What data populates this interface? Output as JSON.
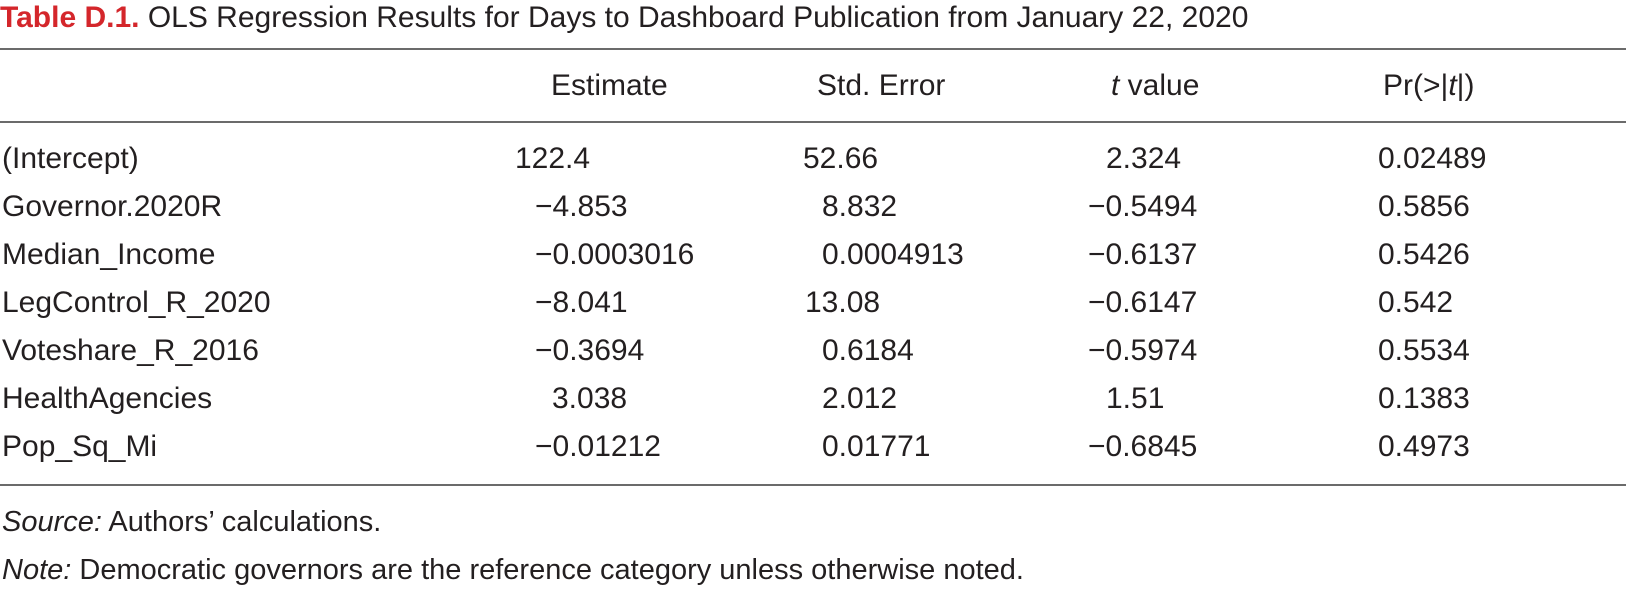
{
  "table": {
    "label": "Table D.1.",
    "title": " OLS Regression Results for Days to Dashboard Publication from January 22, 2020",
    "columns": {
      "estimate": "Estimate",
      "std_error": "Std. Error",
      "t_value_italic": "t",
      "t_value_rest": " value",
      "pr_prefix": "Pr(>|",
      "pr_italic": "t",
      "pr_suffix": "|)"
    },
    "rows": [
      {
        "term": "(Intercept)",
        "estimate": "122.4",
        "std_error": "52.66",
        "t_value": "2.324",
        "p_value": "0.02489"
      },
      {
        "term": "Governor.2020R",
        "estimate": "−4.853",
        "std_error": "8.832",
        "t_value": "−0.5494",
        "p_value": "0.5856"
      },
      {
        "term": "Median_Income",
        "estimate": "−0.0003016",
        "std_error": "0.0004913",
        "t_value": "−0.6137",
        "p_value": "0.5426"
      },
      {
        "term": "LegControl_R_2020",
        "estimate": "−8.041",
        "std_error": "13.08",
        "t_value": "−0.6147",
        "p_value": "0.542"
      },
      {
        "term": "Voteshare_R_2016",
        "estimate": "−0.3694",
        "std_error": "0.6184",
        "t_value": "−0.5974",
        "p_value": "0.5534"
      },
      {
        "term": "HealthAgencies",
        "estimate": "3.038",
        "std_error": "2.012",
        "t_value": "1.51",
        "p_value": "0.1383"
      },
      {
        "term": "Pop_Sq_Mi",
        "estimate": "−0.01212",
        "std_error": "0.01771",
        "t_value": "−0.6845",
        "p_value": "0.4973"
      }
    ],
    "source_label": "Source:",
    "source_text": " Authors’ calculations.",
    "note_label": "Note:",
    "note_text": " Democratic governors are the reference category unless otherwise noted."
  }
}
